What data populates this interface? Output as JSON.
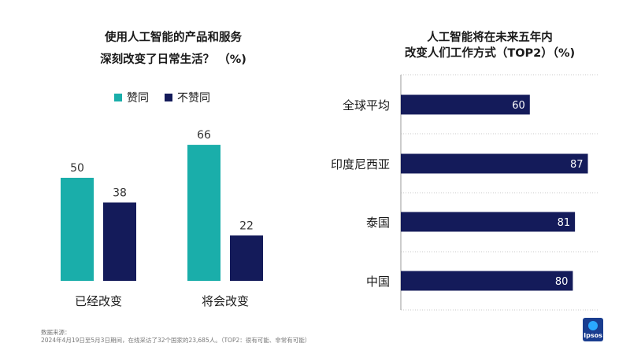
{
  "left_title": {
    "line1": "使用人工智能的产品和服务",
    "line2": "深刻改变了日常生活？ （%)"
  },
  "right_title": {
    "line1": "人工智能将在未来五年内",
    "line2": "改变人们工作方式（TOP2）（%)"
  },
  "colors": {
    "teal": "#1aaeaa",
    "navy": "#141b5a",
    "grid": "#c9c9c9",
    "text": "#1a1a1a"
  },
  "chart_data": [
    {
      "type": "bar",
      "title": "使用人工智能的产品和服务深刻改变了日常生活？ （%)",
      "categories": [
        "已经改变",
        "将会改变"
      ],
      "series": [
        {
          "name": "赞同",
          "values": [
            50,
            66
          ]
        },
        {
          "name": "不赞同",
          "values": [
            38,
            22
          ]
        }
      ],
      "ylim": [
        0,
        80
      ],
      "legend": "top"
    },
    {
      "type": "bar",
      "orientation": "horizontal",
      "title": "人工智能将在未来五年内改变人们工作方式（TOP2）（%)",
      "categories": [
        "全球平均",
        "印度尼西亚",
        "泰国",
        "中国"
      ],
      "values": [
        60,
        87,
        81,
        80
      ],
      "xlim": [
        0,
        100
      ]
    }
  ],
  "footnote": {
    "label": "数据来源：",
    "text": "2024年4月19日至5月3日期间，在线采访了32个国家的23,685人。（TOP2：很有可能、非常有可能）"
  },
  "logo": {
    "text": "Ipsos"
  }
}
